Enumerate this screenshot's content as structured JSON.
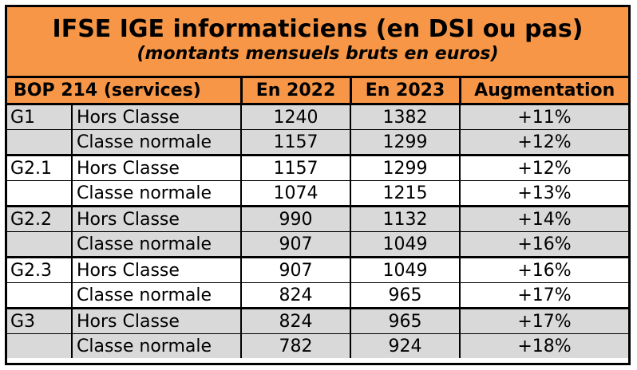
{
  "title": "IFSE IGE informaticiens (en DSI ou pas)",
  "subtitle": "(montants mensuels bruts en euros)",
  "colors": {
    "header_orange": "#f79646",
    "row_gray": "#d9d9d9",
    "border": "#000000"
  },
  "table": {
    "headers": {
      "bop": "BOP 214 (services)",
      "y2022": "En 2022",
      "y2023": "En 2023",
      "augmentation": "Augmentation"
    },
    "groups": [
      {
        "grade": "G1",
        "shade": true,
        "rows": [
          {
            "classe": "Hors Classe",
            "y2022": "1240",
            "y2023": "1382",
            "augmentation": "+11%"
          },
          {
            "classe": "Classe normale",
            "y2022": "1157",
            "y2023": "1299",
            "augmentation": "+12%"
          }
        ]
      },
      {
        "grade": "G2.1",
        "shade": false,
        "rows": [
          {
            "classe": "Hors Classe",
            "y2022": "1157",
            "y2023": "1299",
            "augmentation": "+12%"
          },
          {
            "classe": "Classe normale",
            "y2022": "1074",
            "y2023": "1215",
            "augmentation": "+13%"
          }
        ]
      },
      {
        "grade": "G2.2",
        "shade": true,
        "rows": [
          {
            "classe": "Hors Classe",
            "y2022": "990",
            "y2023": "1132",
            "augmentation": "+14%"
          },
          {
            "classe": "Classe normale",
            "y2022": "907",
            "y2023": "1049",
            "augmentation": "+16%"
          }
        ]
      },
      {
        "grade": "G2.3",
        "shade": false,
        "rows": [
          {
            "classe": "Hors Classe",
            "y2022": "907",
            "y2023": "1049",
            "augmentation": "+16%"
          },
          {
            "classe": "Classe normale",
            "y2022": "824",
            "y2023": "965",
            "augmentation": "+17%"
          }
        ]
      },
      {
        "grade": "G3",
        "shade": true,
        "rows": [
          {
            "classe": "Hors Classe",
            "y2022": "824",
            "y2023": "965",
            "augmentation": "+17%"
          },
          {
            "classe": "Classe normale",
            "y2022": "782",
            "y2023": "924",
            "augmentation": "+18%"
          }
        ]
      }
    ]
  }
}
